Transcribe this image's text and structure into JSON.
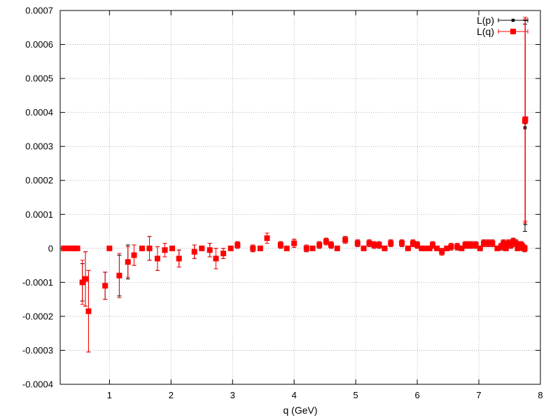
{
  "chart_data": {
    "type": "scatter",
    "title": "",
    "xlabel": "q (GeV)",
    "ylabel": "",
    "xlim": [
      0.2,
      8
    ],
    "ylim": [
      -0.0004,
      0.0007
    ],
    "x_ticks": [
      1,
      2,
      3,
      4,
      5,
      6,
      7,
      8
    ],
    "x_tick_labels": [
      "1",
      "2",
      "3",
      "4",
      "5",
      "6",
      "7",
      "8"
    ],
    "y_ticks": [
      -0.0004,
      -0.0003,
      -0.0002,
      -0.0001,
      0,
      0.0001,
      0.0002,
      0.0003,
      0.0004,
      0.0005,
      0.0006,
      0.0007
    ],
    "y_tick_labels": [
      "-0.0004",
      "-0.0003",
      "-0.0002",
      "-0.0001",
      "0",
      "0.0001",
      "0.0002",
      "0.0003",
      "0.0004",
      "0.0005",
      "0.0006",
      "0.0007"
    ],
    "grid": true,
    "legend_position": "top-right",
    "series": [
      {
        "name": "L(p)",
        "color": "#000000",
        "marker": "small-square",
        "points": [
          {
            "x": 0.26,
            "y": 0,
            "err": 0
          },
          {
            "x": 0.33,
            "y": 0,
            "err": 0
          },
          {
            "x": 0.38,
            "y": 0,
            "err": 0
          },
          {
            "x": 0.43,
            "y": 0,
            "err": 0
          },
          {
            "x": 0.48,
            "y": 0,
            "err": 0
          },
          {
            "x": 0.56,
            "y": -0.0001,
            "err": 5.5e-05
          },
          {
            "x": 0.61,
            "y": -9e-05,
            "err": 8e-05
          },
          {
            "x": 0.66,
            "y": -0.000185,
            "err": 0.00012
          },
          {
            "x": 1.0,
            "y": 0,
            "err": 0
          },
          {
            "x": 0.93,
            "y": -0.00011,
            "err": 4e-05
          },
          {
            "x": 1.16,
            "y": -8e-05,
            "err": 6e-05
          },
          {
            "x": 1.3,
            "y": -4e-05,
            "err": 5e-05
          },
          {
            "x": 1.4,
            "y": -2e-05,
            "err": 3e-05
          },
          {
            "x": 1.53,
            "y": 0,
            "err": 0
          },
          {
            "x": 1.65,
            "y": 0,
            "err": 3.5e-05
          },
          {
            "x": 1.78,
            "y": -3e-05,
            "err": 3.5e-05
          },
          {
            "x": 1.9,
            "y": -5e-06,
            "err": 2e-05
          },
          {
            "x": 2.02,
            "y": 0,
            "err": 0
          },
          {
            "x": 2.13,
            "y": -3e-05,
            "err": 2.5e-05
          },
          {
            "x": 2.38,
            "y": -1e-05,
            "err": 2e-05
          },
          {
            "x": 2.5,
            "y": 0,
            "err": 0
          },
          {
            "x": 2.63,
            "y": -5e-06,
            "err": 2e-05
          },
          {
            "x": 2.73,
            "y": -3e-05,
            "err": 3e-05
          },
          {
            "x": 2.85,
            "y": -1.5e-05,
            "err": 1.5e-05
          },
          {
            "x": 2.97,
            "y": 0,
            "err": 0
          },
          {
            "x": 3.08,
            "y": 1e-05,
            "err": 1e-05
          },
          {
            "x": 3.33,
            "y": 0,
            "err": 1e-05
          },
          {
            "x": 3.45,
            "y": 0,
            "err": 0
          },
          {
            "x": 3.56,
            "y": 3e-05,
            "err": 1.5e-05
          },
          {
            "x": 3.78,
            "y": 1e-05,
            "err": 1e-05
          },
          {
            "x": 3.88,
            "y": 0,
            "err": 0
          },
          {
            "x": 4.0,
            "y": 1.5e-05,
            "err": 1.2e-05
          },
          {
            "x": 4.2,
            "y": 0,
            "err": 1e-05
          },
          {
            "x": 4.3,
            "y": 0,
            "err": 0
          },
          {
            "x": 4.41,
            "y": 1e-05,
            "err": 1e-05
          },
          {
            "x": 4.52,
            "y": 2e-05,
            "err": 1e-05
          },
          {
            "x": 4.6,
            "y": 1e-05,
            "err": 1e-05
          },
          {
            "x": 4.7,
            "y": 0,
            "err": 0
          },
          {
            "x": 4.83,
            "y": 2.5e-05,
            "err": 1e-05
          },
          {
            "x": 5.03,
            "y": 1.5e-05,
            "err": 1e-05
          },
          {
            "x": 5.13,
            "y": 0,
            "err": 0
          },
          {
            "x": 5.22,
            "y": 1.5e-05,
            "err": 1e-05
          },
          {
            "x": 5.3,
            "y": 1e-05,
            "err": 1e-05
          },
          {
            "x": 5.38,
            "y": 1e-05,
            "err": 1e-05
          },
          {
            "x": 5.47,
            "y": 0,
            "err": 0
          },
          {
            "x": 5.57,
            "y": 1.5e-05,
            "err": 1e-05
          },
          {
            "x": 5.75,
            "y": 1.5e-05,
            "err": 1e-05
          },
          {
            "x": 5.85,
            "y": 0,
            "err": 0
          },
          {
            "x": 5.93,
            "y": 1.5e-05,
            "err": 1e-05
          },
          {
            "x": 6.0,
            "y": 1e-05,
            "err": 1e-05
          },
          {
            "x": 6.07,
            "y": 0,
            "err": 0
          },
          {
            "x": 6.13,
            "y": 0,
            "err": 0
          },
          {
            "x": 6.2,
            "y": 0,
            "err": 0
          },
          {
            "x": 6.25,
            "y": 1e-05,
            "err": 1e-05
          },
          {
            "x": 6.32,
            "y": 0,
            "err": 0
          },
          {
            "x": 6.4,
            "y": -1e-05,
            "err": 1e-05
          },
          {
            "x": 6.48,
            "y": 0,
            "err": 0
          },
          {
            "x": 6.55,
            "y": 5e-06,
            "err": 1e-05
          },
          {
            "x": 6.65,
            "y": 5e-06,
            "err": 1e-05
          },
          {
            "x": 6.72,
            "y": 0,
            "err": 0
          },
          {
            "x": 6.78,
            "y": 1e-05,
            "err": 1e-05
          },
          {
            "x": 6.83,
            "y": 1e-05,
            "err": 1e-05
          },
          {
            "x": 6.88,
            "y": 1e-05,
            "err": 1e-05
          },
          {
            "x": 6.95,
            "y": 1e-05,
            "err": 1e-05
          },
          {
            "x": 7.02,
            "y": 0,
            "err": 0
          },
          {
            "x": 7.08,
            "y": 1.5e-05,
            "err": 1e-05
          },
          {
            "x": 7.15,
            "y": 1.5e-05,
            "err": 1e-05
          },
          {
            "x": 7.22,
            "y": 1.5e-05,
            "err": 1e-05
          },
          {
            "x": 7.3,
            "y": 0,
            "err": 0
          },
          {
            "x": 7.36,
            "y": 5e-06,
            "err": 1e-05
          },
          {
            "x": 7.4,
            "y": 1.5e-05,
            "err": 1e-05
          },
          {
            "x": 7.44,
            "y": 0,
            "err": 0
          },
          {
            "x": 7.48,
            "y": 1.5e-05,
            "err": 1e-05
          },
          {
            "x": 7.52,
            "y": 1e-05,
            "err": 1e-05
          },
          {
            "x": 7.56,
            "y": 2e-05,
            "err": 1e-05
          },
          {
            "x": 7.6,
            "y": 1.5e-05,
            "err": 1e-05
          },
          {
            "x": 7.63,
            "y": 0,
            "err": 0
          },
          {
            "x": 7.66,
            "y": 1e-05,
            "err": 1e-05
          },
          {
            "x": 7.69,
            "y": 1e-05,
            "err": 1e-05
          },
          {
            "x": 7.71,
            "y": 5e-06,
            "err": 1e-05
          },
          {
            "x": 7.73,
            "y": 0,
            "err": 0
          },
          {
            "x": 7.745,
            "y": 0,
            "err": 1e-05
          },
          {
            "x": 7.75,
            "y": 0.000355,
            "err": 0.000305
          },
          {
            "x": 7.755,
            "y": 0.00037,
            "err": 0.0003
          }
        ]
      },
      {
        "name": "L(q)",
        "color": "#ff0000",
        "marker": "square",
        "points": [
          {
            "x": 0.26,
            "y": 0,
            "err": 0
          },
          {
            "x": 0.33,
            "y": 0,
            "err": 0
          },
          {
            "x": 0.38,
            "y": 0,
            "err": 0
          },
          {
            "x": 0.43,
            "y": 0,
            "err": 0
          },
          {
            "x": 0.48,
            "y": 0,
            "err": 0
          },
          {
            "x": 0.56,
            "y": -0.0001,
            "err": 6.5e-05
          },
          {
            "x": 0.61,
            "y": -9e-05,
            "err": 8e-05
          },
          {
            "x": 0.66,
            "y": -0.000185,
            "err": 0.00012
          },
          {
            "x": 1.0,
            "y": 0,
            "err": 0
          },
          {
            "x": 0.93,
            "y": -0.00011,
            "err": 4e-05
          },
          {
            "x": 1.16,
            "y": -8e-05,
            "err": 6.5e-05
          },
          {
            "x": 1.3,
            "y": -4e-05,
            "err": 4.5e-05
          },
          {
            "x": 1.4,
            "y": -2e-05,
            "err": 3e-05
          },
          {
            "x": 1.53,
            "y": 0,
            "err": 0
          },
          {
            "x": 1.65,
            "y": 0,
            "err": 3.5e-05
          },
          {
            "x": 1.78,
            "y": -3e-05,
            "err": 3.5e-05
          },
          {
            "x": 1.9,
            "y": -5e-06,
            "err": 2e-05
          },
          {
            "x": 2.02,
            "y": 0,
            "err": 0
          },
          {
            "x": 2.13,
            "y": -3e-05,
            "err": 2.5e-05
          },
          {
            "x": 2.38,
            "y": -1e-05,
            "err": 2e-05
          },
          {
            "x": 2.5,
            "y": 0,
            "err": 0
          },
          {
            "x": 2.63,
            "y": -5e-06,
            "err": 2e-05
          },
          {
            "x": 2.73,
            "y": -3e-05,
            "err": 3e-05
          },
          {
            "x": 2.85,
            "y": -1.5e-05,
            "err": 1.5e-05
          },
          {
            "x": 2.97,
            "y": 0,
            "err": 0
          },
          {
            "x": 3.08,
            "y": 1e-05,
            "err": 1e-05
          },
          {
            "x": 3.33,
            "y": 0,
            "err": 1e-05
          },
          {
            "x": 3.45,
            "y": 0,
            "err": 0
          },
          {
            "x": 3.56,
            "y": 3e-05,
            "err": 1.5e-05
          },
          {
            "x": 3.78,
            "y": 1e-05,
            "err": 1e-05
          },
          {
            "x": 3.88,
            "y": 0,
            "err": 0
          },
          {
            "x": 4.0,
            "y": 1.5e-05,
            "err": 1.2e-05
          },
          {
            "x": 4.2,
            "y": 0,
            "err": 1e-05
          },
          {
            "x": 4.3,
            "y": 0,
            "err": 0
          },
          {
            "x": 4.41,
            "y": 1e-05,
            "err": 1e-05
          },
          {
            "x": 4.52,
            "y": 2e-05,
            "err": 1e-05
          },
          {
            "x": 4.6,
            "y": 1e-05,
            "err": 1e-05
          },
          {
            "x": 4.7,
            "y": 0,
            "err": 0
          },
          {
            "x": 4.83,
            "y": 2.5e-05,
            "err": 1e-05
          },
          {
            "x": 5.03,
            "y": 1.5e-05,
            "err": 1e-05
          },
          {
            "x": 5.13,
            "y": 0,
            "err": 0
          },
          {
            "x": 5.22,
            "y": 1.5e-05,
            "err": 1e-05
          },
          {
            "x": 5.3,
            "y": 1e-05,
            "err": 1e-05
          },
          {
            "x": 5.38,
            "y": 1e-05,
            "err": 1e-05
          },
          {
            "x": 5.47,
            "y": 0,
            "err": 0
          },
          {
            "x": 5.57,
            "y": 1.5e-05,
            "err": 1e-05
          },
          {
            "x": 5.75,
            "y": 1.5e-05,
            "err": 1e-05
          },
          {
            "x": 5.85,
            "y": 0,
            "err": 0
          },
          {
            "x": 5.93,
            "y": 1.5e-05,
            "err": 1e-05
          },
          {
            "x": 6.0,
            "y": 1e-05,
            "err": 1e-05
          },
          {
            "x": 6.07,
            "y": 0,
            "err": 0
          },
          {
            "x": 6.13,
            "y": 0,
            "err": 0
          },
          {
            "x": 6.2,
            "y": 0,
            "err": 0
          },
          {
            "x": 6.25,
            "y": 1e-05,
            "err": 1e-05
          },
          {
            "x": 6.32,
            "y": 0,
            "err": 0
          },
          {
            "x": 6.4,
            "y": -1e-05,
            "err": 1e-05
          },
          {
            "x": 6.48,
            "y": 0,
            "err": 0
          },
          {
            "x": 6.55,
            "y": 5e-06,
            "err": 1e-05
          },
          {
            "x": 6.65,
            "y": 5e-06,
            "err": 1e-05
          },
          {
            "x": 6.72,
            "y": 0,
            "err": 0
          },
          {
            "x": 6.78,
            "y": 1e-05,
            "err": 1e-05
          },
          {
            "x": 6.83,
            "y": 1e-05,
            "err": 1e-05
          },
          {
            "x": 6.88,
            "y": 1e-05,
            "err": 1e-05
          },
          {
            "x": 6.95,
            "y": 1e-05,
            "err": 1e-05
          },
          {
            "x": 7.02,
            "y": 0,
            "err": 0
          },
          {
            "x": 7.08,
            "y": 1.5e-05,
            "err": 1e-05
          },
          {
            "x": 7.15,
            "y": 1.5e-05,
            "err": 1e-05
          },
          {
            "x": 7.22,
            "y": 1.5e-05,
            "err": 1e-05
          },
          {
            "x": 7.3,
            "y": 0,
            "err": 0
          },
          {
            "x": 7.36,
            "y": 5e-06,
            "err": 1e-05
          },
          {
            "x": 7.4,
            "y": 1.5e-05,
            "err": 1e-05
          },
          {
            "x": 7.44,
            "y": 0,
            "err": 0
          },
          {
            "x": 7.48,
            "y": 1.5e-05,
            "err": 1e-05
          },
          {
            "x": 7.52,
            "y": 1e-05,
            "err": 1e-05
          },
          {
            "x": 7.56,
            "y": 2e-05,
            "err": 1e-05
          },
          {
            "x": 7.6,
            "y": 1.5e-05,
            "err": 1e-05
          },
          {
            "x": 7.63,
            "y": 0,
            "err": 0
          },
          {
            "x": 7.66,
            "y": 1e-05,
            "err": 1e-05
          },
          {
            "x": 7.69,
            "y": 1e-05,
            "err": 1e-05
          },
          {
            "x": 7.71,
            "y": 5e-06,
            "err": 1e-05
          },
          {
            "x": 7.73,
            "y": 0,
            "err": 0
          },
          {
            "x": 7.745,
            "y": 0,
            "err": 1e-05
          },
          {
            "x": 7.75,
            "y": 0.000375,
            "err": 0.0003
          },
          {
            "x": 7.755,
            "y": 0.00038,
            "err": 0.0003
          }
        ]
      }
    ]
  }
}
